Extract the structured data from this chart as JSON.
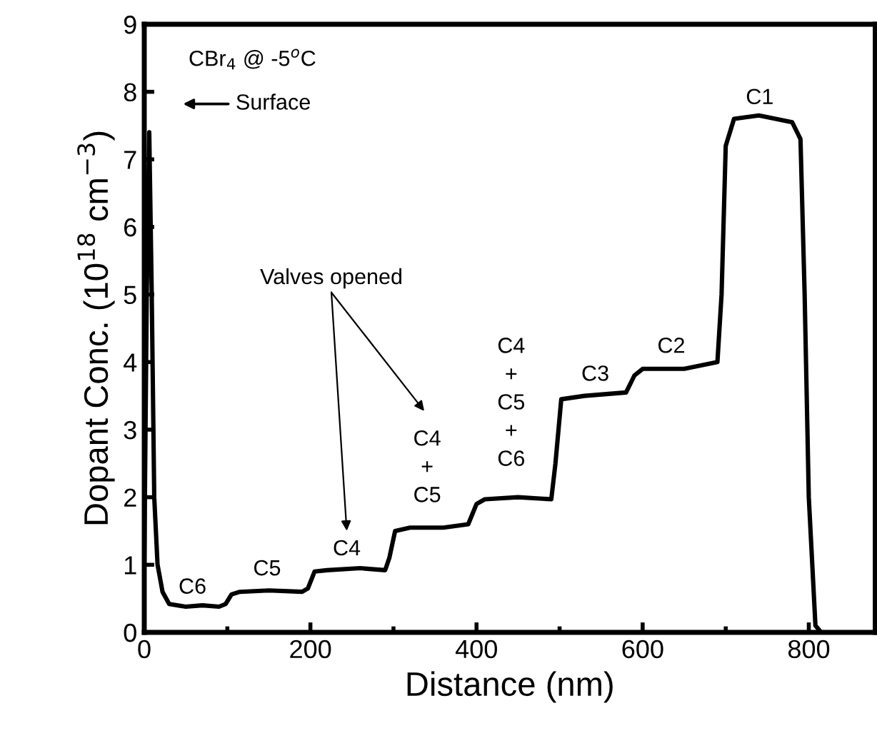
{
  "chart_data": {
    "type": "line",
    "xlabel": "Distance (nm)",
    "ylabel": "Dopant Conc. (10$^{18}$ cm$^{−3}$)",
    "x": [
      0,
      3,
      6,
      9,
      12,
      16,
      22,
      30,
      50,
      70,
      90,
      98,
      105,
      115,
      150,
      190,
      197,
      205,
      220,
      260,
      290,
      295,
      302,
      320,
      360,
      390,
      400,
      410,
      450,
      490,
      495,
      502,
      530,
      580,
      590,
      600,
      650,
      690,
      695,
      700,
      710,
      740,
      780,
      790,
      795,
      800,
      808,
      815,
      880
    ],
    "series": [
      {
        "color": "#000000",
        "values": [
          1,
          5,
          7.4,
          5,
          2,
          1,
          0.6,
          0.42,
          0.38,
          0.4,
          0.38,
          0.42,
          0.56,
          0.6,
          0.62,
          0.6,
          0.65,
          0.9,
          0.92,
          0.95,
          0.92,
          1.1,
          1.5,
          1.55,
          1.55,
          1.6,
          1.9,
          1.97,
          2.0,
          1.97,
          2.5,
          3.45,
          3.5,
          3.55,
          3.8,
          3.9,
          3.9,
          4.0,
          5,
          7.2,
          7.6,
          7.65,
          7.55,
          7.3,
          5,
          2,
          0.1,
          0,
          0
        ]
      }
    ],
    "xlim": [
      0,
      880
    ],
    "ylim": [
      0,
      9
    ],
    "xticks": [
      0,
      200,
      400,
      600,
      800
    ],
    "yticks": [
      0,
      1,
      2,
      3,
      4,
      5,
      6,
      7,
      8,
      9
    ],
    "grid": false,
    "legend": false,
    "marker": "none",
    "line_style": "solid",
    "annotations": [
      "CBr$_{4}$ @ -5$^{o}$C",
      "Surface",
      "Valves opened",
      "C6",
      "C5",
      "C4",
      "C4\n+\nC5",
      "C4\n+\nC5\n+\nC6",
      "C3",
      "C2",
      "C1"
    ]
  }
}
